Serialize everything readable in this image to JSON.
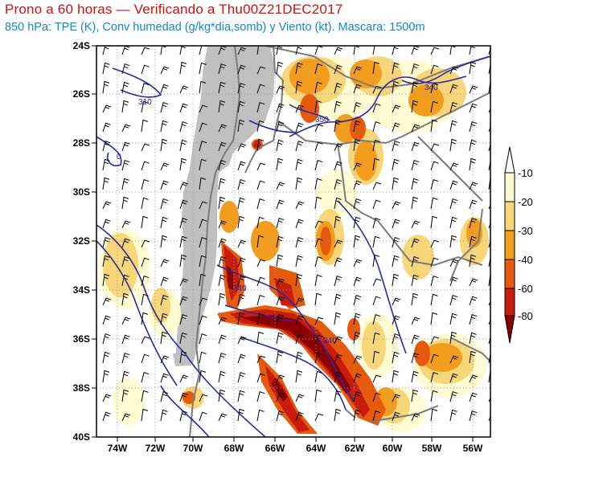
{
  "header": {
    "title": "Prono a 60 horas — Verificando a Thu00Z21DEC2017",
    "subtitle": "850 hPa: TPE (K), Conv humedad (g/kg*dia,somb) y Viento (kt). Mascara: 1500m"
  },
  "map": {
    "lat_labels": [
      "24S",
      "26S",
      "28S",
      "30S",
      "32S",
      "34S",
      "36S",
      "38S",
      "40S"
    ],
    "lon_labels": [
      "74W",
      "72W",
      "70W",
      "68W",
      "66W",
      "64W",
      "62W",
      "60W",
      "58W",
      "56W"
    ],
    "contour_labels": [
      "310",
      "0",
      "350",
      "340",
      "340",
      "340"
    ],
    "mask_color": "#c0c0c0",
    "contour_color": "#2a2aa0",
    "border_color": "#7a7a7a"
  },
  "colorbar": {
    "labels": [
      "-10",
      "-20",
      "-30",
      "-40",
      "-60",
      "-80"
    ],
    "colors": [
      "#fffbd0",
      "#f8d67a",
      "#f39d1e",
      "#e55a0d",
      "#c81c0c",
      "#8b0000"
    ]
  }
}
